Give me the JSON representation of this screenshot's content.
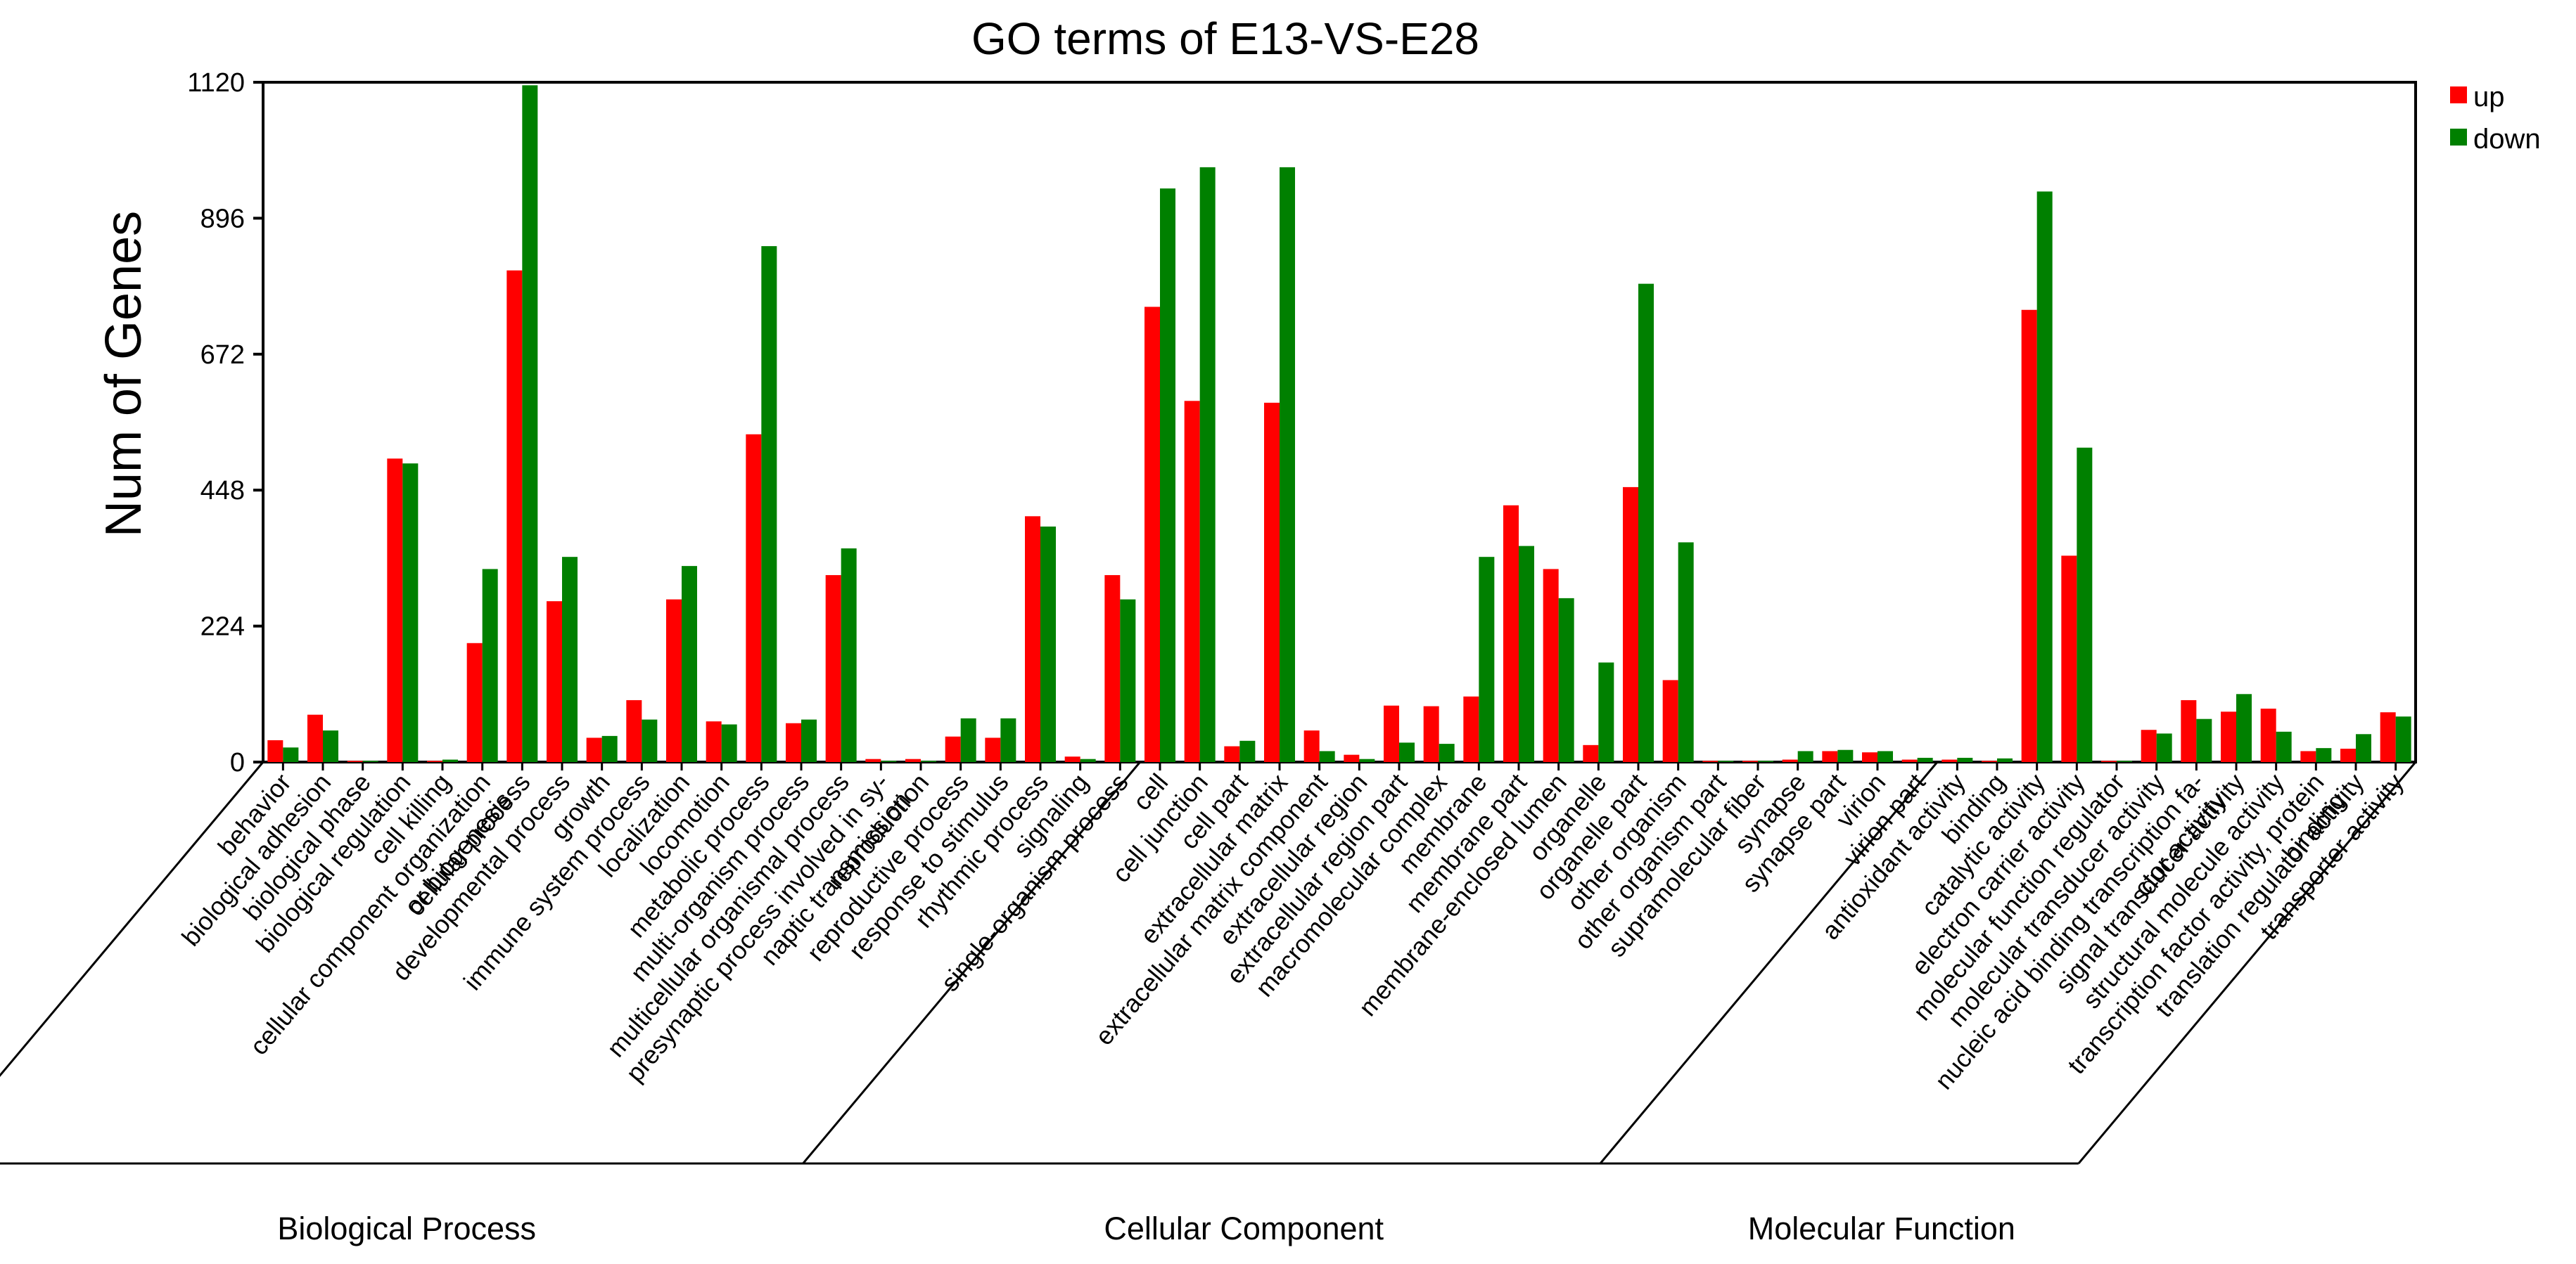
{
  "chart_data": {
    "type": "bar",
    "title": "GO terms of E13-VS-E28",
    "xlabel": "",
    "ylabel": "Num of Genes",
    "ylim": [
      0,
      1120
    ],
    "yticks": [
      0,
      224,
      448,
      672,
      896,
      1120
    ],
    "grid": false,
    "legend_position": "top-right",
    "colors": {
      "up": "#ff0000",
      "down": "#008000"
    },
    "categories": [
      [
        "behavior"
      ],
      [
        "biological adhesion"
      ],
      [
        "biological phase"
      ],
      [
        "biological regulation"
      ],
      [
        "cell killing"
      ],
      [
        "cellular component organization",
        "or biogenesis"
      ],
      [
        "cellular process"
      ],
      [
        "developmental process"
      ],
      [
        "growth"
      ],
      [
        "immune system process"
      ],
      [
        "localization"
      ],
      [
        "locomotion"
      ],
      [
        "metabolic process"
      ],
      [
        "multi-organism process"
      ],
      [
        "multicellular organismal process"
      ],
      [
        "presynaptic process involved in sy-",
        "naptic transmission"
      ],
      [
        "reproduction"
      ],
      [
        "reproductive process"
      ],
      [
        "response to stimulus"
      ],
      [
        "rhythmic process"
      ],
      [
        "signaling"
      ],
      [
        "single-organism process"
      ],
      [
        "cell"
      ],
      [
        "cell junction"
      ],
      [
        "cell part"
      ],
      [
        "extracellular matrix"
      ],
      [
        "extracellular matrix component"
      ],
      [
        "extracellular region"
      ],
      [
        "extracellular region part"
      ],
      [
        "macromolecular complex"
      ],
      [
        "membrane"
      ],
      [
        "membrane part"
      ],
      [
        "membrane-enclosed lumen"
      ],
      [
        "organelle"
      ],
      [
        "organelle part"
      ],
      [
        "other organism"
      ],
      [
        "other organism part"
      ],
      [
        "supramolecular fiber"
      ],
      [
        "synapse"
      ],
      [
        "synapse part"
      ],
      [
        "virion"
      ],
      [
        "virion part"
      ],
      [
        "antioxidant activity"
      ],
      [
        "binding"
      ],
      [
        "catalytic activity"
      ],
      [
        "electron carrier activity"
      ],
      [
        "molecular function regulator"
      ],
      [
        "molecular transducer activity"
      ],
      [
        "nucleic acid binding transcription fa-",
        "ctor activity"
      ],
      [
        "signal transducer activity"
      ],
      [
        "structural molecule activity"
      ],
      [
        "transcription factor activity, protein",
        "binding"
      ],
      [
        "translation regulator activity"
      ],
      [
        "transporter activity"
      ]
    ],
    "series": [
      {
        "name": "up",
        "values": [
          36,
          78,
          2,
          500,
          2,
          196,
          810,
          265,
          40,
          102,
          268,
          67,
          540,
          64,
          308,
          5,
          5,
          42,
          40,
          405,
          9,
          308,
          750,
          595,
          26,
          592,
          52,
          12,
          93,
          92,
          108,
          423,
          318,
          28,
          453,
          135,
          2,
          2,
          4,
          18,
          16,
          4,
          4,
          2,
          745,
          340,
          2,
          53,
          102,
          83,
          88,
          18,
          22,
          82
        ]
      },
      {
        "name": "down",
        "values": [
          24,
          52,
          2,
          492,
          4,
          318,
          1115,
          338,
          43,
          70,
          323,
          62,
          850,
          70,
          352,
          2,
          2,
          72,
          72,
          388,
          5,
          268,
          945,
          980,
          35,
          980,
          18,
          5,
          32,
          30,
          338,
          356,
          270,
          164,
          788,
          362,
          2,
          2,
          18,
          20,
          18,
          7,
          7,
          6,
          940,
          518,
          2,
          47,
          71,
          112,
          50,
          23,
          46,
          75
        ]
      }
    ],
    "groups": [
      {
        "name": "Biological Process",
        "start": 0,
        "end": 21
      },
      {
        "name": "Cellular Component",
        "start": 22,
        "end": 41
      },
      {
        "name": "Molecular Function",
        "start": 42,
        "end": 53
      }
    ]
  }
}
